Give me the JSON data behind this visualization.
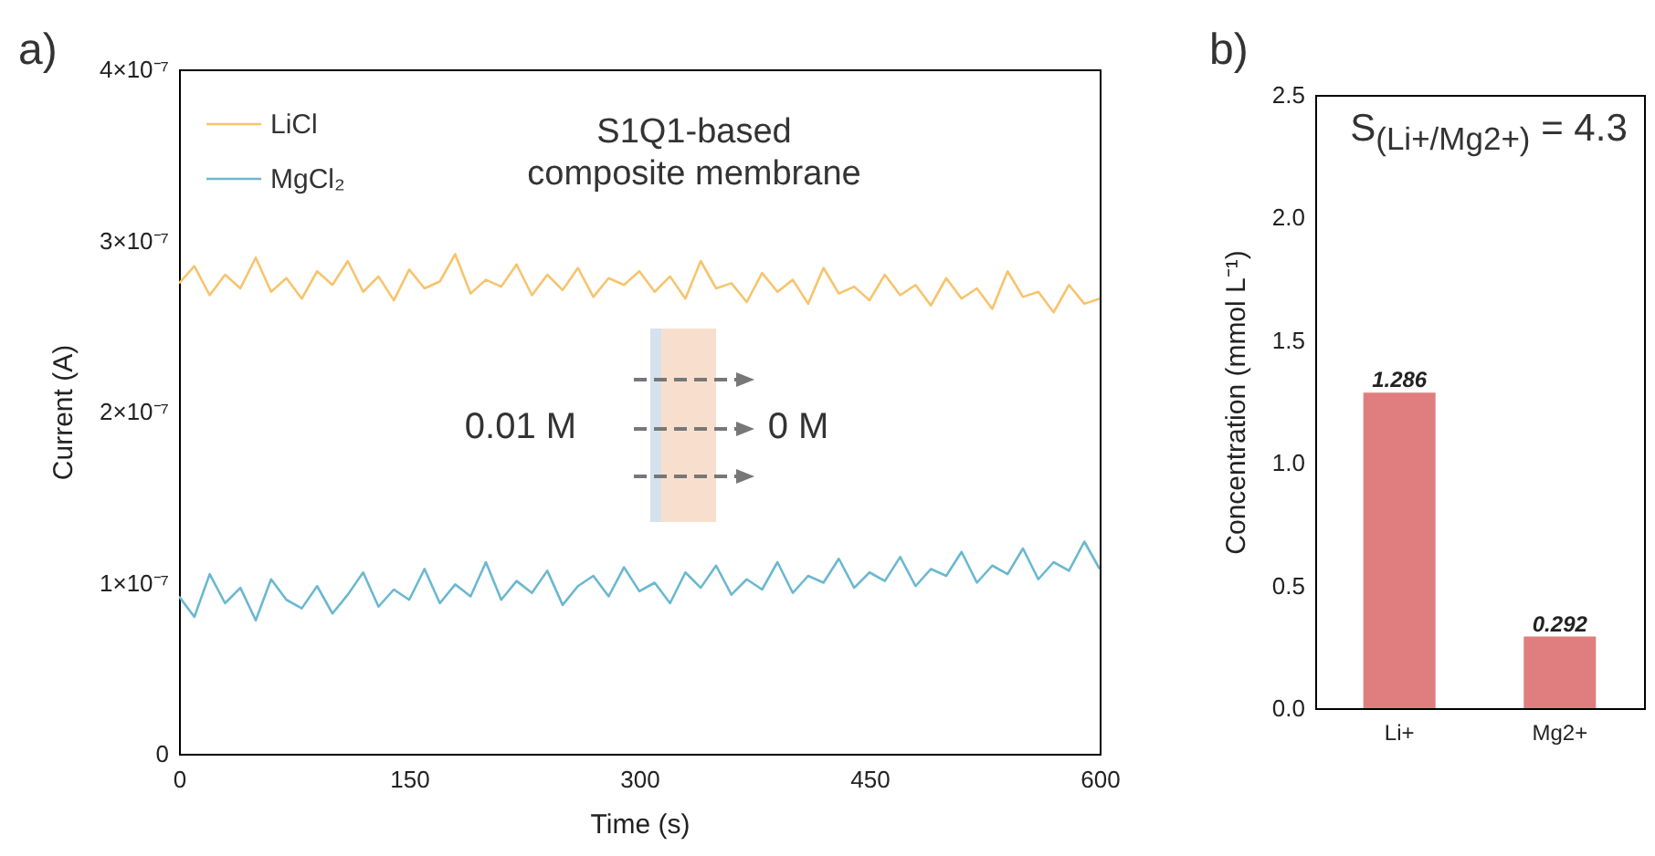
{
  "chart_data": [
    {
      "type": "line",
      "xlabel": "Time (s)",
      "ylabel": "Current (A)",
      "xlim": [
        0,
        600
      ],
      "xticks": [
        0,
        150,
        300,
        450,
        600
      ],
      "ylim": [
        0,
        4e-07
      ],
      "yticks": [
        0,
        {
          "value": 1e-07,
          "label": "1×10⁻⁷"
        },
        {
          "value": 2e-07,
          "label": "2×10⁻⁷"
        },
        {
          "value": 3e-07,
          "label": "3×10⁻⁷"
        },
        {
          "value": 4e-07,
          "label": "4×10⁻⁷"
        }
      ],
      "legend": "top left",
      "grid": false,
      "annotations": [
        "a)",
        "S1Q1-based\ncomposite membrane",
        "0.01 M",
        "0 M"
      ],
      "x": [
        0,
        10,
        20,
        30,
        40,
        50,
        60,
        70,
        80,
        90,
        100,
        110,
        120,
        130,
        140,
        150,
        160,
        170,
        180,
        190,
        200,
        210,
        220,
        230,
        240,
        250,
        260,
        270,
        280,
        290,
        300,
        310,
        320,
        330,
        340,
        350,
        360,
        370,
        380,
        390,
        400,
        410,
        420,
        430,
        440,
        450,
        460,
        470,
        480,
        490,
        500,
        510,
        520,
        530,
        540,
        550,
        560,
        570,
        580,
        590,
        600
      ],
      "series": [
        {
          "name": "LiCl",
          "color": "#f7c46c",
          "values": [
            2.75e-07,
            2.85e-07,
            2.68e-07,
            2.8e-07,
            2.72e-07,
            2.9e-07,
            2.7e-07,
            2.78e-07,
            2.66e-07,
            2.82e-07,
            2.74e-07,
            2.88e-07,
            2.7e-07,
            2.79e-07,
            2.65e-07,
            2.83e-07,
            2.72e-07,
            2.76e-07,
            2.92e-07,
            2.69e-07,
            2.77e-07,
            2.73e-07,
            2.86e-07,
            2.68e-07,
            2.8e-07,
            2.71e-07,
            2.84e-07,
            2.67e-07,
            2.78e-07,
            2.74e-07,
            2.82e-07,
            2.7e-07,
            2.79e-07,
            2.66e-07,
            2.88e-07,
            2.72e-07,
            2.75e-07,
            2.64e-07,
            2.81e-07,
            2.7e-07,
            2.77e-07,
            2.63e-07,
            2.84e-07,
            2.69e-07,
            2.73e-07,
            2.65e-07,
            2.8e-07,
            2.68e-07,
            2.74e-07,
            2.62e-07,
            2.78e-07,
            2.66e-07,
            2.72e-07,
            2.6e-07,
            2.82e-07,
            2.67e-07,
            2.7e-07,
            2.58e-07,
            2.74e-07,
            2.63e-07,
            2.66e-07
          ]
        },
        {
          "name": "MgCl₂",
          "color": "#6bb8d0",
          "values": [
            9.2e-08,
            8e-08,
            1.05e-07,
            8.8e-08,
            9.7e-08,
            7.8e-08,
            1.02e-07,
            9e-08,
            8.5e-08,
            9.8e-08,
            8.2e-08,
            9.3e-08,
            1.06e-07,
            8.6e-08,
            9.6e-08,
            9e-08,
            1.08e-07,
            8.8e-08,
            9.9e-08,
            9.2e-08,
            1.12e-07,
            9e-08,
            1.01e-07,
            9.4e-08,
            1.07e-07,
            8.7e-08,
            9.8e-08,
            1.04e-07,
            9.2e-08,
            1.09e-07,
            9.5e-08,
            1e-07,
            8.8e-08,
            1.06e-07,
            9.7e-08,
            1.1e-07,
            9.3e-08,
            1.02e-07,
            9.6e-08,
            1.12e-07,
            9.4e-08,
            1.04e-07,
            1e-07,
            1.14e-07,
            9.7e-08,
            1.06e-07,
            1.01e-07,
            1.15e-07,
            9.8e-08,
            1.08e-07,
            1.04e-07,
            1.18e-07,
            1e-07,
            1.1e-07,
            1.05e-07,
            1.2e-07,
            1.02e-07,
            1.12e-07,
            1.07e-07,
            1.24e-07,
            1.08e-07
          ]
        }
      ]
    },
    {
      "type": "bar",
      "ylabel": "Concentration (mmol L⁻¹)",
      "categories": [
        "Li+",
        "Mg2+"
      ],
      "values": [
        1.286,
        0.292
      ],
      "colors": [
        "#e07e7f",
        "#e07e7f"
      ],
      "ylim": [
        0,
        2.5
      ],
      "yticks": [
        {
          "value": 0,
          "label": "0.0"
        },
        0.5,
        {
          "value": 1,
          "label": "1.0"
        },
        1.5,
        {
          "value": 2,
          "label": "2.0"
        },
        2.5
      ],
      "data_labels": true,
      "annotations": [
        "b)",
        "S$_{(Li+/Mg2+)}$ = 4.3"
      ]
    }
  ]
}
